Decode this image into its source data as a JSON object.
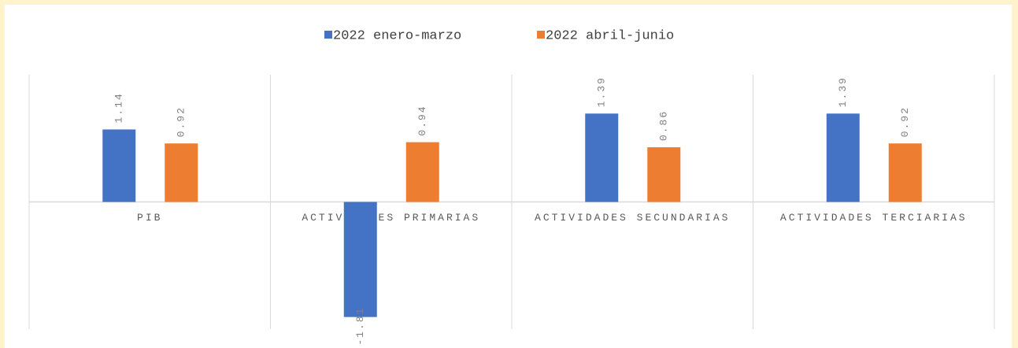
{
  "chart_data": {
    "type": "bar",
    "categories": [
      "PIB",
      "ACTIVIDADES PRIMARIAS",
      "ACTIVIDADES SECUNDARIAS",
      "ACTIVIDADES TERCIARIAS"
    ],
    "series": [
      {
        "name": "2022 enero-marzo",
        "color": "#4472c4",
        "values": [
          1.14,
          -1.81,
          1.39,
          1.39
        ]
      },
      {
        "name": "2022 abril-junio",
        "color": "#ed7d31",
        "values": [
          0.92,
          0.94,
          0.86,
          0.92
        ]
      }
    ],
    "ylim": [
      -2,
      2
    ],
    "legend": "top"
  }
}
